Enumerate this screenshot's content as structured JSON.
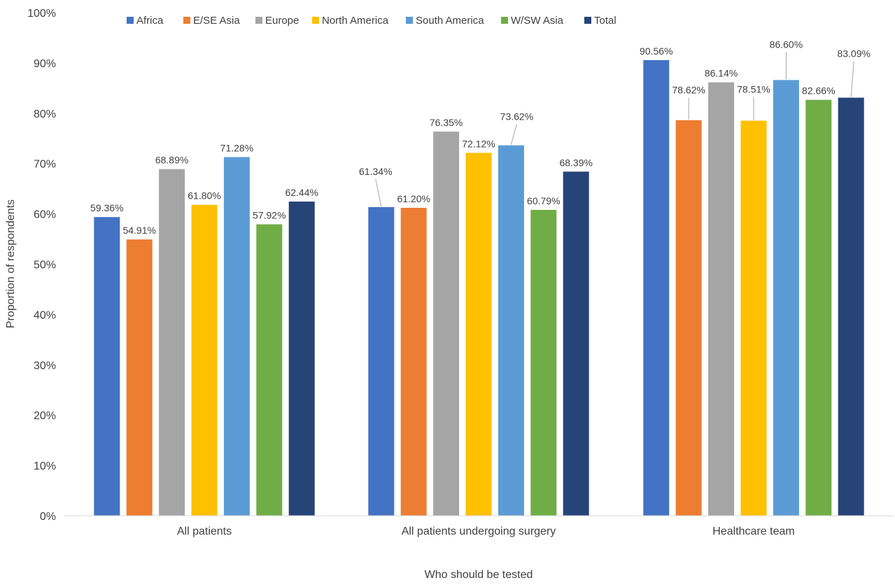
{
  "chart_data": {
    "type": "bar",
    "xlabel": "Who should be tested",
    "ylabel": "Proportion of respondents",
    "ylim": [
      0,
      100
    ],
    "yticks": [
      0,
      10,
      20,
      30,
      40,
      50,
      60,
      70,
      80,
      90,
      100
    ],
    "ytick_labels": [
      "0%",
      "10%",
      "20%",
      "30%",
      "40%",
      "50%",
      "60%",
      "70%",
      "80%",
      "90%",
      "100%"
    ],
    "grid": false,
    "legend_position": "top",
    "categories": [
      "All patients",
      "All patients undergoing surgery",
      "Healthcare team"
    ],
    "series": [
      {
        "name": "Africa",
        "color": "#4472C4",
        "values": [
          59.36,
          61.34,
          90.56
        ],
        "labels": [
          "59.36%",
          "61.34%",
          "90.56%"
        ]
      },
      {
        "name": "E/SE Asia",
        "color": "#ED7D31",
        "values": [
          54.91,
          61.2,
          78.62
        ],
        "labels": [
          "54.91%",
          "61.20%",
          "78.62%"
        ]
      },
      {
        "name": "Europe",
        "color": "#A5A5A5",
        "values": [
          68.89,
          76.35,
          86.14
        ],
        "labels": [
          "68.89%",
          "76.35%",
          "86.14%"
        ]
      },
      {
        "name": "North America",
        "color": "#FFC000",
        "values": [
          61.8,
          72.12,
          78.51
        ],
        "labels": [
          "61.80%",
          "72.12%",
          "78.51%"
        ]
      },
      {
        "name": "South America",
        "color": "#5B9BD5",
        "values": [
          71.28,
          73.62,
          86.6
        ],
        "labels": [
          "71.28%",
          "73.62%",
          "86.60%"
        ]
      },
      {
        "name": "W/SW Asia",
        "color": "#70AD47",
        "values": [
          57.92,
          60.79,
          82.66
        ],
        "labels": [
          "57.92%",
          "60.79%",
          "82.66%"
        ]
      },
      {
        "name": "Total",
        "color": "#264478",
        "values": [
          62.44,
          68.39,
          83.09
        ],
        "labels": [
          "62.44%",
          "68.39%",
          "83.09%"
        ]
      }
    ]
  }
}
